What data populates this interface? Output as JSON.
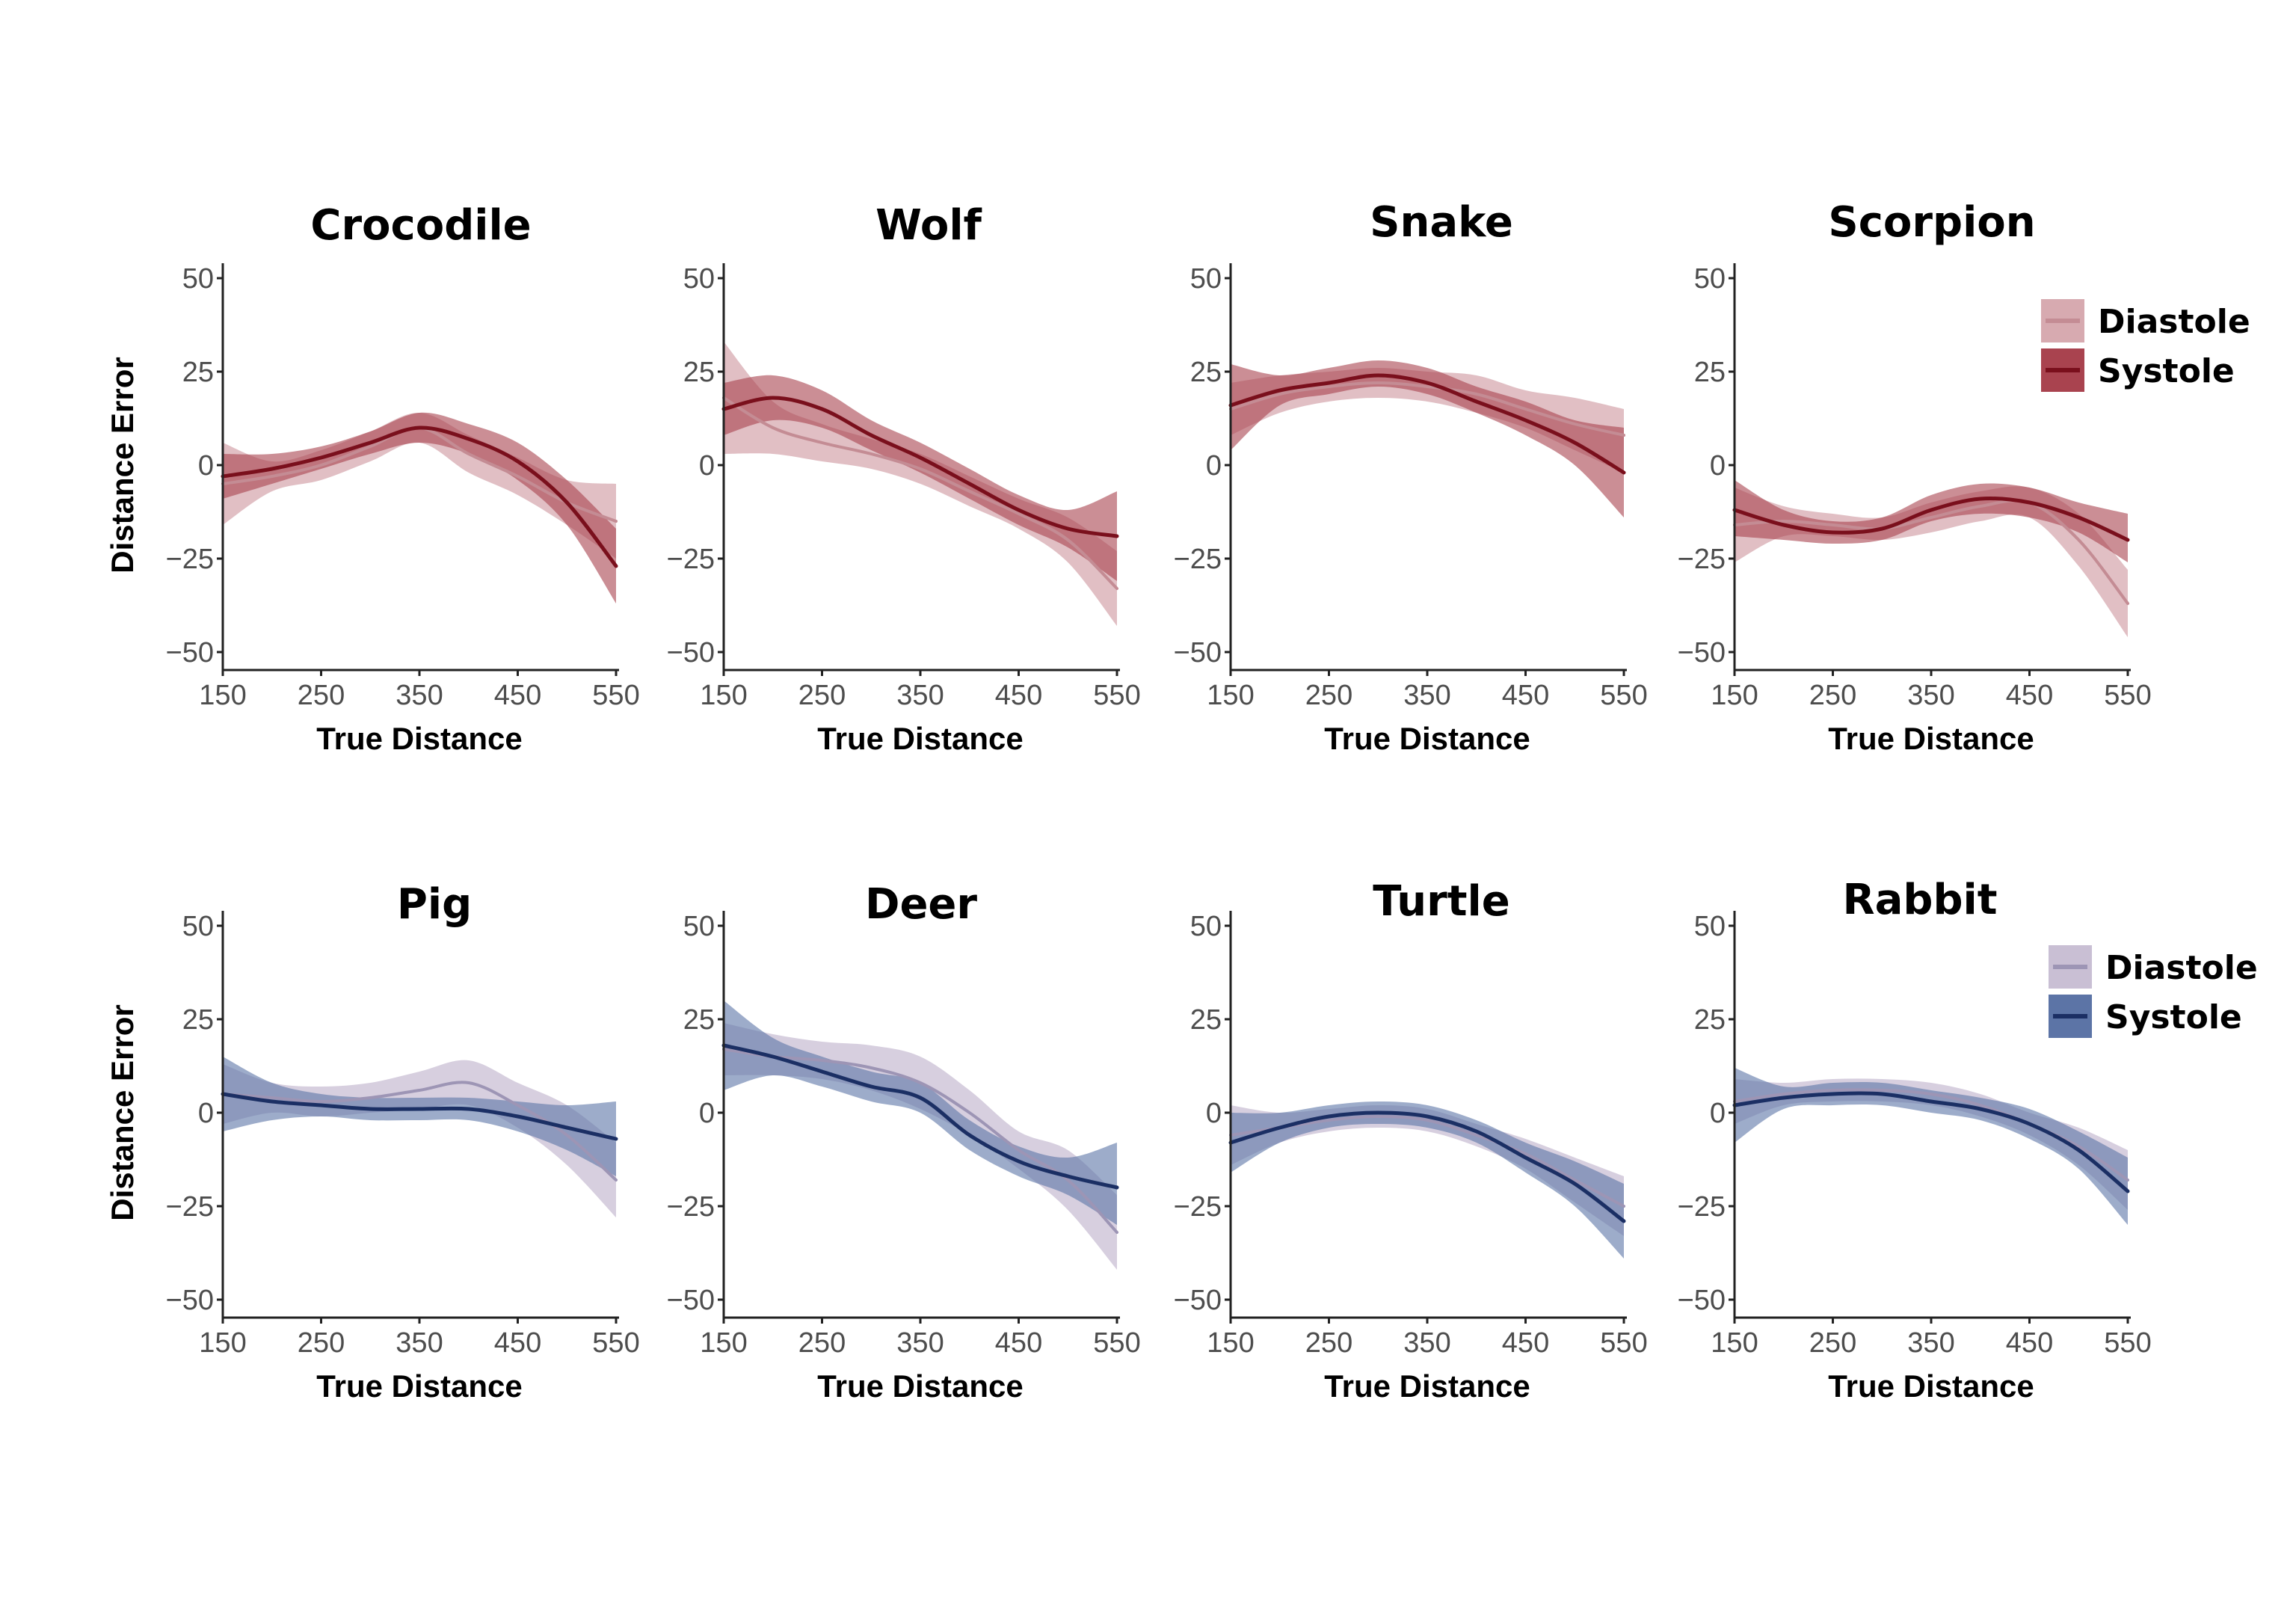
{
  "chart_data": [
    {
      "type": "line",
      "title": "Crocodile",
      "xlabel": "True Distance",
      "ylabel": "Distance Error",
      "xlim": [
        150,
        550
      ],
      "ylim": [
        -50,
        50
      ],
      "xticks": [
        "150",
        "250",
        "350",
        "450",
        "550"
      ],
      "yticks": [
        "50",
        "25",
        "0",
        "-25",
        "-50"
      ],
      "x": [
        150,
        200,
        250,
        300,
        350,
        400,
        450,
        500,
        550
      ],
      "series": [
        {
          "name": "Diastole",
          "values": [
            -5,
            -3,
            0,
            5,
            10,
            3,
            -3,
            -10,
            -15
          ],
          "lower": [
            -16,
            -7,
            -4,
            1,
            6,
            -2,
            -8,
            -16,
            -25
          ],
          "upper": [
            6,
            1,
            4,
            9,
            14,
            8,
            2,
            -4,
            -5
          ]
        },
        {
          "name": "Systole",
          "values": [
            -3,
            -1,
            2,
            6,
            10,
            7,
            1,
            -10,
            -27
          ],
          "lower": [
            -9,
            -5,
            -1,
            3,
            6,
            3,
            -4,
            -16,
            -37
          ],
          "upper": [
            3,
            3,
            5,
            9,
            14,
            11,
            6,
            -4,
            -17
          ]
        }
      ]
    },
    {
      "type": "line",
      "title": "Wolf",
      "xlabel": "True Distance",
      "ylabel": "",
      "xlim": [
        150,
        550
      ],
      "ylim": [
        -50,
        50
      ],
      "xticks": [
        "150",
        "250",
        "350",
        "450",
        "550"
      ],
      "yticks": [
        "50",
        "25",
        "0",
        "-25",
        "-50"
      ],
      "x": [
        150,
        200,
        250,
        300,
        350,
        400,
        450,
        500,
        550
      ],
      "series": [
        {
          "name": "Diastole",
          "values": [
            18,
            10,
            6,
            3,
            -1,
            -7,
            -13,
            -20,
            -33
          ],
          "lower": [
            3,
            3,
            1,
            -1,
            -5,
            -11,
            -17,
            -26,
            -43
          ],
          "upper": [
            33,
            17,
            11,
            7,
            3,
            -3,
            -9,
            -14,
            -23
          ]
        },
        {
          "name": "Systole",
          "values": [
            15,
            18,
            15,
            8,
            2,
            -5,
            -12,
            -17,
            -19
          ],
          "lower": [
            8,
            12,
            10,
            4,
            -2,
            -9,
            -16,
            -22,
            -31
          ],
          "upper": [
            22,
            24,
            20,
            12,
            6,
            -1,
            -8,
            -12,
            -7
          ]
        }
      ]
    },
    {
      "type": "line",
      "title": "Snake",
      "xlabel": "True Distance",
      "ylabel": "",
      "xlim": [
        150,
        550
      ],
      "ylim": [
        -50,
        50
      ],
      "xticks": [
        "150",
        "250",
        "350",
        "450",
        "550"
      ],
      "yticks": [
        "50",
        "25",
        "0",
        "-25",
        "-50"
      ],
      "x": [
        150,
        200,
        250,
        300,
        350,
        400,
        450,
        500,
        550
      ],
      "series": [
        {
          "name": "Diastole",
          "values": [
            15,
            19,
            21,
            22,
            21,
            19,
            15,
            11,
            8
          ],
          "lower": [
            8,
            14,
            17,
            18,
            17,
            14,
            10,
            4,
            -2
          ],
          "upper": [
            22,
            24,
            25,
            26,
            25,
            24,
            20,
            18,
            15
          ]
        },
        {
          "name": "Systole",
          "values": [
            16,
            20,
            22,
            24,
            22,
            17,
            12,
            6,
            -2
          ],
          "lower": [
            4,
            16,
            19,
            21,
            19,
            14,
            8,
            0,
            -14
          ],
          "upper": [
            27,
            24,
            26,
            28,
            26,
            21,
            17,
            12,
            10
          ]
        }
      ]
    },
    {
      "type": "line",
      "title": "Scorpion",
      "xlabel": "True Distance",
      "ylabel": "",
      "xlim": [
        150,
        550
      ],
      "ylim": [
        -50,
        50
      ],
      "xticks": [
        "150",
        "250",
        "350",
        "450",
        "550"
      ],
      "yticks": [
        "50",
        "25",
        "0",
        "-25",
        "-50"
      ],
      "x": [
        150,
        200,
        250,
        300,
        350,
        400,
        450,
        500,
        550
      ],
      "series": [
        {
          "name": "Diastole",
          "values": [
            -16,
            -15,
            -16,
            -17,
            -14,
            -11,
            -10,
            -20,
            -37
          ],
          "lower": [
            -26,
            -19,
            -19,
            -20,
            -18,
            -15,
            -14,
            -27,
            -46
          ],
          "upper": [
            -6,
            -11,
            -13,
            -14,
            -10,
            -7,
            -6,
            -13,
            -28
          ]
        },
        {
          "name": "Systole",
          "values": [
            -12,
            -16,
            -18,
            -17,
            -12,
            -9,
            -10,
            -14,
            -20
          ],
          "lower": [
            -19,
            -20,
            -21,
            -20,
            -15,
            -13,
            -14,
            -18,
            -26
          ],
          "upper": [
            -4,
            -12,
            -15,
            -14,
            -8,
            -5,
            -6,
            -10,
            -13
          ]
        }
      ]
    },
    {
      "type": "line",
      "title": "Pig",
      "xlabel": "True Distance",
      "ylabel": "Distance Error",
      "xlim": [
        150,
        550
      ],
      "ylim": [
        -50,
        50
      ],
      "xticks": [
        "150",
        "250",
        "350",
        "450",
        "550"
      ],
      "yticks": [
        "50",
        "25",
        "0",
        "-25",
        "-50"
      ],
      "x": [
        150,
        200,
        250,
        300,
        350,
        400,
        450,
        500,
        550
      ],
      "series": [
        {
          "name": "Diastole",
          "values": [
            5,
            4,
            3,
            4,
            6,
            8,
            2,
            -6,
            -18
          ],
          "lower": [
            -3,
            0,
            -1,
            0,
            1,
            2,
            -4,
            -14,
            -28
          ],
          "upper": [
            13,
            8,
            7,
            8,
            11,
            14,
            8,
            2,
            -8
          ]
        },
        {
          "name": "Systole",
          "values": [
            5,
            3,
            2,
            1,
            1,
            1,
            -1,
            -4,
            -7
          ],
          "lower": [
            -5,
            -2,
            -1,
            -2,
            -2,
            -2,
            -5,
            -10,
            -17
          ],
          "upper": [
            15,
            8,
            5,
            4,
            4,
            4,
            3,
            2,
            3
          ]
        }
      ]
    },
    {
      "type": "line",
      "title": "Deer",
      "xlabel": "True Distance",
      "ylabel": "",
      "xlim": [
        150,
        550
      ],
      "ylim": [
        -50,
        50
      ],
      "xticks": [
        "150",
        "250",
        "350",
        "450",
        "550"
      ],
      "yticks": [
        "50",
        "25",
        "0",
        "-25",
        "-50"
      ],
      "x": [
        150,
        200,
        250,
        300,
        350,
        400,
        450,
        500,
        550
      ],
      "series": [
        {
          "name": "Diastole",
          "values": [
            17,
            15,
            14,
            12,
            8,
            0,
            -10,
            -18,
            -32
          ],
          "lower": [
            10,
            10,
            9,
            6,
            1,
            -6,
            -15,
            -26,
            -42
          ],
          "upper": [
            24,
            21,
            19,
            18,
            15,
            6,
            -5,
            -10,
            -22
          ]
        },
        {
          "name": "Systole",
          "values": [
            18,
            15,
            11,
            7,
            4,
            -6,
            -13,
            -17,
            -20
          ],
          "lower": [
            6,
            10,
            7,
            3,
            0,
            -10,
            -17,
            -22,
            -30
          ],
          "upper": [
            30,
            20,
            15,
            11,
            8,
            -2,
            -9,
            -12,
            -8
          ]
        }
      ]
    },
    {
      "type": "line",
      "title": "Turtle",
      "xlabel": "True Distance",
      "ylabel": "",
      "xlim": [
        150,
        550
      ],
      "ylim": [
        -50,
        50
      ],
      "xticks": [
        "150",
        "250",
        "350",
        "450",
        "550"
      ],
      "yticks": [
        "50",
        "25",
        "0",
        "-25",
        "-50"
      ],
      "x": [
        150,
        200,
        250,
        300,
        350,
        400,
        450,
        500,
        550
      ],
      "series": [
        {
          "name": "Diastole",
          "values": [
            -6,
            -4,
            -2,
            -1,
            -2,
            -6,
            -11,
            -18,
            -25
          ],
          "lower": [
            -14,
            -8,
            -5,
            -4,
            -5,
            -9,
            -15,
            -24,
            -33
          ],
          "upper": [
            2,
            0,
            1,
            2,
            1,
            -3,
            -7,
            -12,
            -17
          ]
        },
        {
          "name": "Systole",
          "values": [
            -8,
            -4,
            -1,
            0,
            -1,
            -5,
            -12,
            -19,
            -29
          ],
          "lower": [
            -16,
            -8,
            -4,
            -3,
            -4,
            -8,
            -16,
            -25,
            -39
          ],
          "upper": [
            0,
            0,
            2,
            3,
            2,
            -2,
            -8,
            -13,
            -19
          ]
        }
      ]
    },
    {
      "type": "line",
      "title": "Rabbit",
      "xlabel": "True Distance",
      "ylabel": "",
      "xlim": [
        150,
        550
      ],
      "ylim": [
        -50,
        50
      ],
      "xticks": [
        "150",
        "250",
        "350",
        "450",
        "550"
      ],
      "yticks": [
        "50",
        "25",
        "0",
        "-25",
        "-50"
      ],
      "x": [
        150,
        200,
        250,
        300,
        350,
        400,
        450,
        500,
        550
      ],
      "series": [
        {
          "name": "Diastole",
          "values": [
            3,
            5,
            6,
            6,
            5,
            2,
            -3,
            -9,
            -18
          ],
          "lower": [
            -3,
            2,
            3,
            3,
            2,
            -1,
            -6,
            -14,
            -26
          ],
          "upper": [
            9,
            8,
            9,
            9,
            8,
            5,
            0,
            -4,
            -10
          ]
        },
        {
          "name": "Systole",
          "values": [
            2,
            4,
            5,
            5,
            3,
            1,
            -3,
            -10,
            -21
          ],
          "lower": [
            -8,
            1,
            2,
            2,
            0,
            -2,
            -7,
            -15,
            -30
          ],
          "upper": [
            12,
            7,
            8,
            8,
            6,
            4,
            1,
            -5,
            -12
          ]
        }
      ]
    }
  ],
  "colors": {
    "red_diastole_band": "#d7aab0",
    "red_diastole_line": "#c48c94",
    "red_systole_band": "#a9434f",
    "red_systole_line": "#7a0f1c",
    "blue_diastole_band": "#c9bfd4",
    "blue_diastole_line": "#9d95b5",
    "blue_systole_band": "#5c74a6",
    "blue_systole_line": "#1b2f64"
  },
  "legends": [
    {
      "diastole": "Diastole",
      "systole": "Systole",
      "palette": "red"
    },
    {
      "diastole": "Diastole",
      "systole": "Systole",
      "palette": "blue"
    }
  ]
}
